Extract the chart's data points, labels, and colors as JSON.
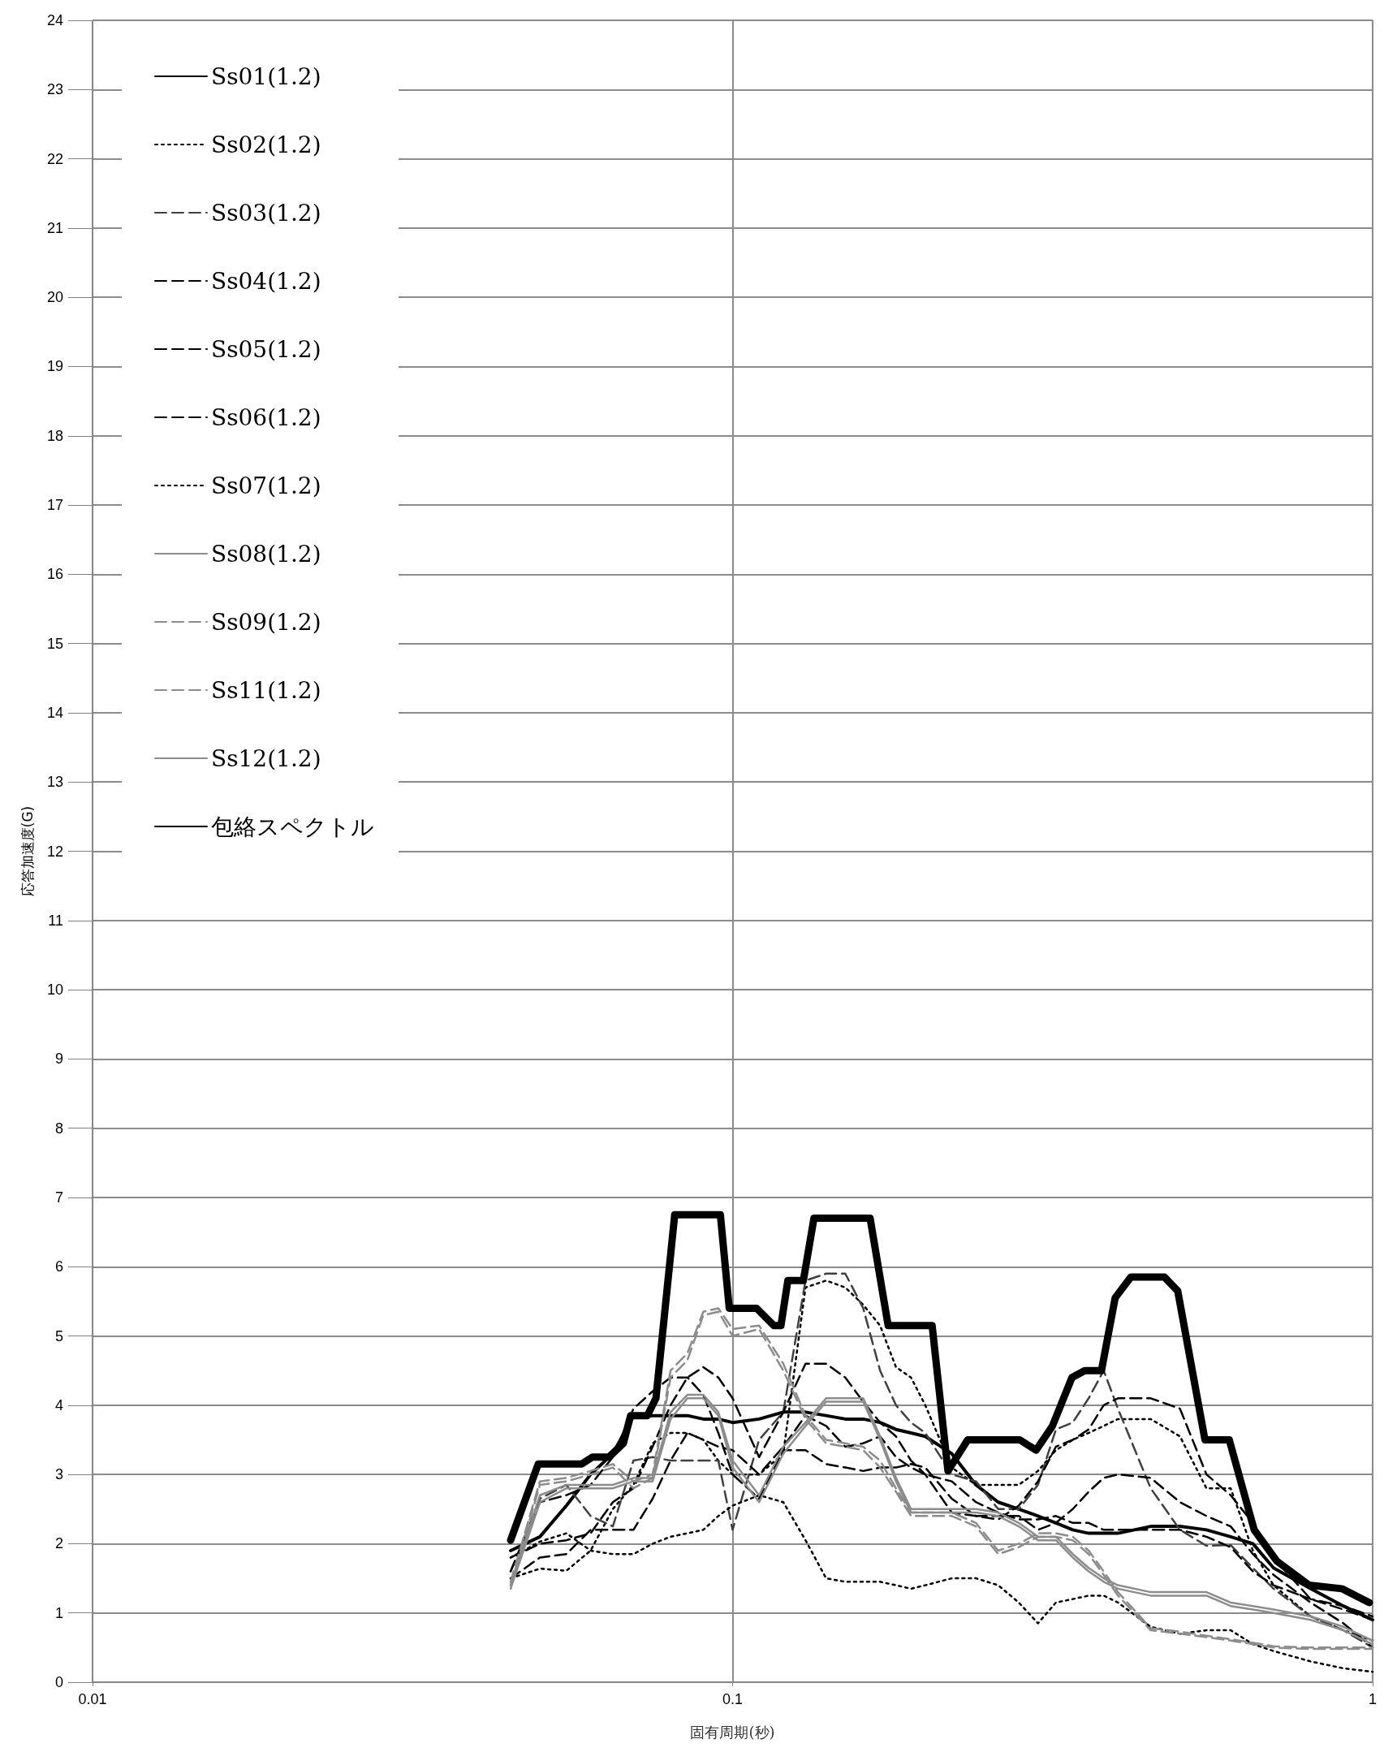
{
  "chart_data": {
    "type": "line",
    "xlabel": "固有周期(秒)",
    "ylabel": "応答加速度(G)",
    "log": "x",
    "xlim": [
      0.01,
      1
    ],
    "xticks": [
      0.01,
      0.1,
      1
    ],
    "ylim": [
      0,
      24
    ],
    "yticks": [
      0,
      1,
      2,
      3,
      4,
      5,
      6,
      7,
      8,
      9,
      10,
      11,
      12,
      13,
      14,
      15,
      16,
      17,
      18,
      19,
      20,
      21,
      22,
      23,
      24
    ],
    "grid": true,
    "legend": "top left",
    "marker": "none",
    "x": [
      0.045,
      0.05,
      0.055,
      0.06,
      0.065,
      0.07,
      0.075,
      0.08,
      0.085,
      0.09,
      0.095,
      0.1,
      0.11,
      0.12,
      0.13,
      0.14,
      0.15,
      0.16,
      0.17,
      0.18,
      0.19,
      0.2,
      0.22,
      0.24,
      0.26,
      0.28,
      0.3,
      0.32,
      0.34,
      0.36,
      0.38,
      0.4,
      0.45,
      0.5,
      0.55,
      0.6,
      0.65,
      0.7,
      0.8,
      0.9,
      1
    ],
    "series": [
      {
        "name": "Ss01(1.2)",
        "color": "#000000",
        "line_style": "solid",
        "values": [
          1.9,
          2.1,
          2.55,
          3.0,
          3.3,
          3.85,
          3.85,
          3.85,
          3.85,
          3.8,
          3.8,
          3.75,
          3.8,
          3.9,
          3.9,
          3.85,
          3.8,
          3.8,
          3.75,
          3.65,
          3.6,
          3.55,
          3.3,
          2.85,
          2.6,
          2.5,
          2.4,
          2.3,
          2.2,
          2.15,
          2.15,
          2.15,
          2.25,
          2.25,
          2.2,
          2.1,
          2.0,
          1.65,
          1.35,
          1.1,
          0.9
        ]
      },
      {
        "name": "Ss02(1.2)",
        "color": "#000000",
        "line_style": "dotted",
        "values": [
          1.5,
          1.64,
          1.61,
          1.9,
          2.5,
          2.85,
          3.45,
          3.6,
          3.6,
          3.5,
          3.2,
          3.0,
          3.0,
          3.3,
          5.7,
          5.8,
          5.7,
          5.45,
          5.15,
          4.55,
          4.4,
          4.0,
          3.1,
          2.85,
          2.85,
          2.85,
          3.05,
          3.35,
          3.5,
          3.6,
          3.7,
          3.8,
          3.8,
          3.55,
          2.8,
          2.8,
          1.9,
          1.4,
          0.95,
          0.75,
          0.6
        ]
      },
      {
        "name": "Ss03(1.2)",
        "color": "#404040",
        "line_style": "dashed",
        "values": [
          1.6,
          2.65,
          2.85,
          2.4,
          2.25,
          3.2,
          3.25,
          3.2,
          3.2,
          3.2,
          3.2,
          2.2,
          3.5,
          3.9,
          5.8,
          5.9,
          5.9,
          5.4,
          4.5,
          4.0,
          3.75,
          3.6,
          3.0,
          2.9,
          2.5,
          2.5,
          2.85,
          3.65,
          3.75,
          4.1,
          4.5,
          3.95,
          2.8,
          2.2,
          1.97,
          1.98,
          1.65,
          1.35,
          0.95,
          0.75,
          0.5
        ]
      },
      {
        "name": "Ss04(1.2)",
        "color": "#000000",
        "line_style": "dashed",
        "values": [
          1.8,
          2.0,
          2.05,
          2.15,
          2.6,
          2.8,
          3.4,
          4.0,
          4.4,
          4.55,
          4.4,
          4.1,
          3.25,
          3.9,
          4.6,
          4.6,
          4.4,
          4.05,
          3.75,
          3.55,
          3.2,
          3.0,
          2.45,
          2.4,
          2.35,
          2.55,
          2.9,
          3.4,
          3.5,
          3.65,
          4.0,
          4.1,
          4.1,
          3.95,
          3.0,
          2.7,
          2.3,
          1.8,
          1.2,
          1.05,
          0.9
        ]
      },
      {
        "name": "Ss05(1.2)",
        "color": "#000000",
        "line_style": "dashed",
        "values": [
          1.6,
          2.6,
          2.7,
          2.85,
          3.25,
          3.95,
          4.2,
          4.4,
          4.4,
          4.15,
          3.6,
          3.0,
          2.65,
          3.35,
          3.35,
          3.15,
          3.1,
          3.05,
          3.1,
          3.1,
          3.15,
          3.1,
          2.65,
          2.4,
          2.4,
          2.4,
          2.2,
          2.3,
          2.5,
          2.75,
          2.95,
          3.0,
          2.95,
          2.6,
          2.4,
          2.25,
          1.85,
          1.55,
          1.15,
          0.85,
          0.5
        ]
      },
      {
        "name": "Ss06(1.2)",
        "color": "#000000",
        "line_style": "dashed",
        "values": [
          1.5,
          1.8,
          1.85,
          2.2,
          2.2,
          2.2,
          2.65,
          3.2,
          3.6,
          3.5,
          3.4,
          3.35,
          3.0,
          3.4,
          3.85,
          3.7,
          3.4,
          3.45,
          3.55,
          3.25,
          3.1,
          3.0,
          2.9,
          2.6,
          2.45,
          2.35,
          2.35,
          2.4,
          2.3,
          2.3,
          2.2,
          2.2,
          2.2,
          2.2,
          2.1,
          1.95,
          1.6,
          1.4,
          1.2,
          1.1,
          0.95
        ]
      },
      {
        "name": "Ss07(1.2)",
        "color": "#000000",
        "line_style": "dotted",
        "values": [
          1.8,
          2.03,
          2.15,
          1.9,
          1.85,
          1.85,
          2.0,
          2.1,
          2.15,
          2.2,
          2.4,
          2.55,
          2.7,
          2.6,
          2.05,
          1.5,
          1.45,
          1.45,
          1.45,
          1.4,
          1.35,
          1.4,
          1.5,
          1.5,
          1.4,
          1.15,
          0.85,
          1.15,
          1.2,
          1.25,
          1.25,
          1.15,
          0.8,
          0.7,
          0.75,
          0.75,
          0.55,
          0.45,
          0.3,
          0.2,
          0.15
        ]
      },
      {
        "name": "Ss08(1.2)",
        "color": "#8c8c8c",
        "line_style": "solid",
        "values": [
          1.4,
          2.7,
          2.85,
          2.85,
          2.85,
          2.95,
          2.95,
          3.9,
          4.15,
          4.15,
          3.9,
          3.2,
          2.7,
          3.4,
          3.75,
          4.1,
          4.1,
          4.1,
          3.55,
          2.95,
          2.5,
          2.5,
          2.5,
          2.5,
          2.45,
          2.3,
          2.1,
          2.1,
          1.85,
          1.65,
          1.5,
          1.4,
          1.3,
          1.3,
          1.3,
          1.15,
          1.1,
          1.05,
          0.95,
          0.8,
          0.6
        ]
      },
      {
        "name": "Ss09(1.2)",
        "color": "#8c8c8c",
        "line_style": "dashed",
        "values": [
          1.45,
          2.9,
          2.95,
          3.05,
          3.15,
          2.9,
          3.0,
          4.5,
          4.75,
          5.35,
          5.4,
          5.1,
          5.15,
          4.6,
          3.85,
          3.5,
          3.45,
          3.4,
          3.2,
          2.8,
          2.45,
          2.45,
          2.45,
          2.3,
          1.9,
          2.0,
          2.15,
          2.15,
          2.1,
          1.9,
          1.6,
          1.3,
          0.78,
          0.73,
          0.67,
          0.62,
          0.57,
          0.52,
          0.5,
          0.5,
          0.5
        ]
      },
      {
        "name": "Ss11(1.2)",
        "color": "#8c8c8c",
        "line_style": "dashed",
        "values": [
          1.4,
          2.85,
          2.9,
          3.0,
          3.1,
          2.8,
          2.95,
          4.4,
          4.65,
          5.3,
          5.35,
          5.0,
          5.1,
          4.5,
          3.8,
          3.45,
          3.4,
          3.35,
          3.1,
          2.75,
          2.4,
          2.4,
          2.4,
          2.25,
          1.85,
          1.95,
          2.1,
          2.1,
          2.05,
          1.85,
          1.55,
          1.25,
          0.75,
          0.7,
          0.65,
          0.6,
          0.55,
          0.5,
          0.48,
          0.48,
          0.48
        ]
      },
      {
        "name": "Ss12(1.2)",
        "color": "#8c8c8c",
        "line_style": "solid",
        "values": [
          1.35,
          2.6,
          2.8,
          2.8,
          2.8,
          2.9,
          2.9,
          3.8,
          4.1,
          4.1,
          3.85,
          3.1,
          2.6,
          3.3,
          3.7,
          4.05,
          4.05,
          4.05,
          3.5,
          2.9,
          2.45,
          2.45,
          2.45,
          2.45,
          2.4,
          2.25,
          2.05,
          2.05,
          1.8,
          1.6,
          1.45,
          1.35,
          1.25,
          1.25,
          1.25,
          1.1,
          1.05,
          1.0,
          0.9,
          0.75,
          0.55
        ]
      },
      {
        "name": "包絡スペクトル",
        "color": "#000000",
        "line_style": "solid",
        "x": [
          0.045,
          0.0497,
          0.0581,
          0.0604,
          0.0641,
          0.0675,
          0.0693,
          0.0736,
          0.0759,
          0.0812,
          0.0957,
          0.0988,
          0.109,
          0.116,
          0.119,
          0.122,
          0.129,
          0.134,
          0.164,
          0.175,
          0.205,
          0.217,
          0.233,
          0.281,
          0.298,
          0.316,
          0.339,
          0.355,
          0.377,
          0.396,
          0.419,
          0.473,
          0.496,
          0.547,
          0.597,
          0.653,
          0.708,
          0.796,
          0.895,
          0.988
        ],
        "values": [
          2.05,
          3.15,
          3.15,
          3.25,
          3.25,
          3.45,
          3.85,
          3.85,
          4.1,
          6.75,
          6.75,
          5.4,
          5.4,
          5.15,
          5.15,
          5.8,
          5.8,
          6.7,
          6.7,
          5.15,
          5.15,
          3.05,
          3.5,
          3.5,
          3.35,
          3.7,
          4.4,
          4.5,
          4.5,
          5.55,
          5.85,
          5.85,
          5.65,
          3.5,
          3.5,
          2.2,
          1.75,
          1.4,
          1.35,
          1.15
        ]
      }
    ]
  }
}
